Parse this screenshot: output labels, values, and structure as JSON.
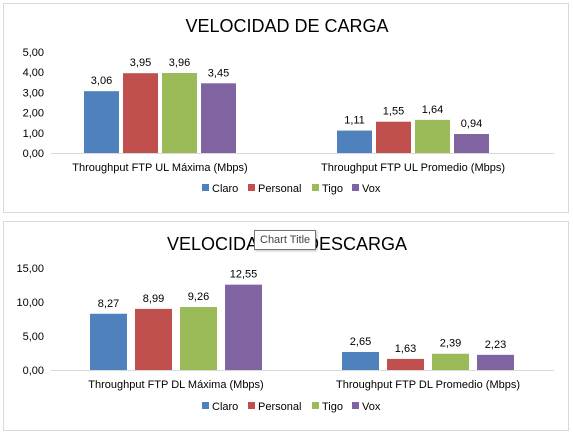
{
  "colors": {
    "Claro": "#4f81bd",
    "Personal": "#c0504d",
    "Tigo": "#9bbb59",
    "Vox": "#8064a2"
  },
  "tooltip": {
    "text": "Chart Title"
  },
  "chart_data": [
    {
      "type": "bar",
      "title": "VELOCIDAD DE CARGA",
      "categories": [
        "Throughput FTP UL Máxima (Mbps)",
        "Throughput FTP UL Promedio (Mbps)"
      ],
      "series": [
        {
          "name": "Claro",
          "values": [
            3.06,
            1.11
          ],
          "labels": [
            "3,06",
            "1,11"
          ]
        },
        {
          "name": "Personal",
          "values": [
            3.95,
            1.55
          ],
          "labels": [
            "3,95",
            "1,55"
          ]
        },
        {
          "name": "Tigo",
          "values": [
            3.96,
            1.64
          ],
          "labels": [
            "3,96",
            "1,64"
          ]
        },
        {
          "name": "Vox",
          "values": [
            3.45,
            0.94
          ],
          "labels": [
            "3,45",
            "0,94"
          ]
        }
      ],
      "ylim": [
        0,
        5
      ],
      "yticks": [
        "0,00",
        "1,00",
        "2,00",
        "3,00",
        "4,00",
        "5,00"
      ],
      "grid": false,
      "legend": "bottom"
    },
    {
      "type": "bar",
      "title": "VELOCIDAD DE DESCARGA",
      "categories": [
        "Throughput FTP DL Máxima (Mbps)",
        "Throughput FTP DL Promedio (Mbps)"
      ],
      "series": [
        {
          "name": "Claro",
          "values": [
            8.27,
            2.65
          ],
          "labels": [
            "8,27",
            "2,65"
          ]
        },
        {
          "name": "Personal",
          "values": [
            8.99,
            1.63
          ],
          "labels": [
            "8,99",
            "1,63"
          ]
        },
        {
          "name": "Tigo",
          "values": [
            9.26,
            2.39
          ],
          "labels": [
            "9,26",
            "2,39"
          ]
        },
        {
          "name": "Vox",
          "values": [
            12.55,
            2.23
          ],
          "labels": [
            "12,55",
            "2,23"
          ]
        }
      ],
      "ylim": [
        0,
        15
      ],
      "yticks": [
        "0,00",
        "5,00",
        "10,00",
        "15,00"
      ],
      "grid": false,
      "legend": "bottom"
    }
  ]
}
